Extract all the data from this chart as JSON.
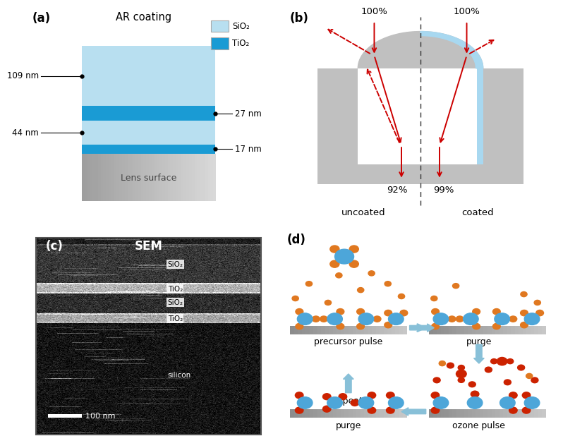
{
  "panel_a": {
    "title": "AR coating",
    "panel_label": "(a)",
    "sio2_light": "#b8dff0",
    "tio2_color": "#1a9bd4",
    "legend_sio2_label": "SiO₂",
    "legend_tio2_label": "TiO₂",
    "lens_label": "Lens surface",
    "lens_top_color": "#aaaaaa",
    "lens_bot_color": "#cccccc",
    "layer_labels_left": [
      "109 nm",
      "44 nm"
    ],
    "layer_labels_right": [
      "27 nm",
      "17 nm"
    ]
  },
  "panel_b": {
    "panel_label": "(b)",
    "lens_gray": "#c0c0c0",
    "coating_blue": "#a8d8f0",
    "arrow_red": "#cc0000",
    "pct_100_left": "100%",
    "pct_100_right": "100%",
    "pct_92": "92%",
    "pct_99": "99%",
    "uncoated_label": "uncoated",
    "coated_label": "coated"
  },
  "panel_c": {
    "panel_label": "(c)",
    "title": "SEM",
    "scale_bar_label": "100 nm",
    "label_sio2_1": "SiO₂",
    "label_tio2_1": "TiO₂",
    "label_sio2_2": "SiO₂",
    "label_tio2_2": "TiO₂",
    "label_silicon": "silicon"
  },
  "panel_d": {
    "panel_label": "(d)",
    "blue_color": "#4da6d9",
    "orange_color": "#e07820",
    "red_color": "#cc2200",
    "arrow_color": "#88c0d8",
    "label_precursor": "precursor pulse",
    "label_purge_top": "purge",
    "label_ozone": "ozone pulse",
    "label_purge_bot": "purge",
    "label_repeat": "repeat"
  }
}
